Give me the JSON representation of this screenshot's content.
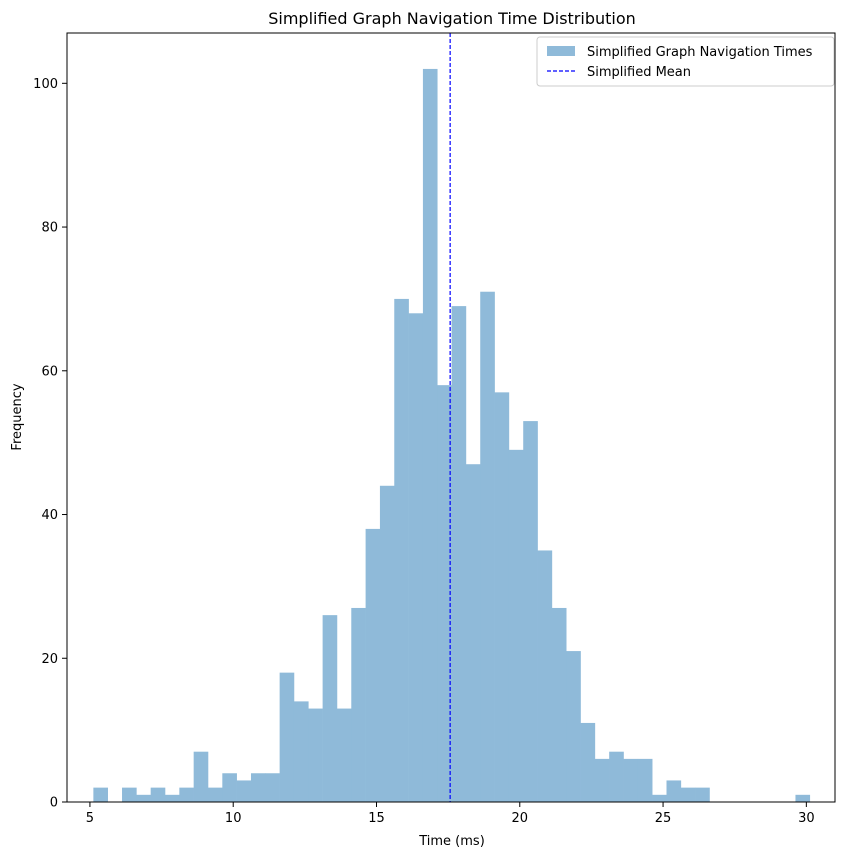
{
  "chart_data": {
    "type": "bar",
    "title": "Simplified Graph Navigation Time Distribution",
    "xlabel": "Time (ms)",
    "ylabel": "Frequency",
    "xlim": [
      4.2,
      31.0
    ],
    "ylim": [
      0,
      107
    ],
    "x_ticks": [
      5,
      10,
      15,
      20,
      25,
      30
    ],
    "y_ticks": [
      0,
      20,
      40,
      60,
      80,
      100
    ],
    "bin_start": 5.12,
    "bin_width": 0.5,
    "counts": [
      2,
      0,
      2,
      1,
      2,
      1,
      2,
      7,
      2,
      4,
      3,
      4,
      4,
      18,
      14,
      13,
      26,
      13,
      27,
      38,
      44,
      70,
      68,
      102,
      58,
      69,
      47,
      71,
      57,
      49,
      53,
      35,
      27,
      21,
      11,
      6,
      7,
      6,
      6,
      1,
      3,
      2,
      2,
      0,
      0,
      0,
      0,
      0,
      0,
      1
    ],
    "mean": 17.57,
    "grid": false,
    "legend_position": "top-right",
    "series": [
      {
        "name": "Simplified Graph Navigation Times",
        "color": "#8fbad9",
        "kind": "histogram"
      },
      {
        "name": "Simplified Mean",
        "color": "#0000ff",
        "kind": "dashed-vertical-line"
      }
    ]
  }
}
